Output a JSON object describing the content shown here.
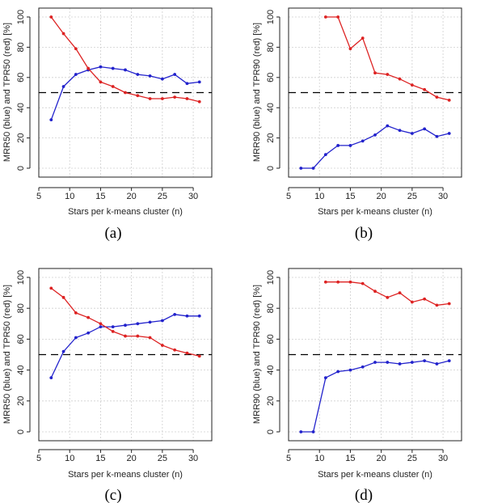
{
  "chart_data": [
    {
      "type": "line",
      "caption": "(a)",
      "xlabel": "Stars per k-means cluster (n)",
      "ylabel": "MRR50 (blue) and TPR50 (red) [%]",
      "xlim": [
        5,
        33
      ],
      "ylim": [
        0,
        100
      ],
      "xticks": [
        5,
        10,
        15,
        20,
        25,
        30
      ],
      "yticks": [
        0,
        20,
        40,
        60,
        80,
        100
      ],
      "reference_line": 50,
      "series": [
        {
          "name": "MRR50 (blue)",
          "color": "#2222cc",
          "x": [
            7,
            9,
            11,
            13,
            15,
            17,
            19,
            21,
            23,
            25,
            27,
            29,
            31
          ],
          "y": [
            32,
            54,
            62,
            65,
            67,
            66,
            65,
            62,
            61,
            59,
            62,
            56,
            57
          ]
        },
        {
          "name": "TPR50 (red)",
          "color": "#dd2222",
          "x": [
            7,
            9,
            11,
            13,
            15,
            17,
            19,
            21,
            23,
            25,
            27,
            29,
            31
          ],
          "y": [
            100,
            89,
            79,
            66,
            57,
            54,
            50,
            48,
            46,
            46,
            47,
            46,
            44
          ]
        }
      ]
    },
    {
      "type": "line",
      "caption": "(b)",
      "xlabel": "Stars per k-means cluster (n)",
      "ylabel": "MRR90 (blue) and TPR90 (red) [%]",
      "xlim": [
        5,
        33
      ],
      "ylim": [
        0,
        100
      ],
      "xticks": [
        5,
        10,
        15,
        20,
        25,
        30
      ],
      "yticks": [
        0,
        20,
        40,
        60,
        80,
        100
      ],
      "reference_line": 50,
      "series": [
        {
          "name": "MRR90 (blue)",
          "color": "#2222cc",
          "x": [
            7,
            9,
            11,
            13,
            15,
            17,
            19,
            21,
            23,
            25,
            27,
            29,
            31
          ],
          "y": [
            0,
            0,
            9,
            15,
            15,
            18,
            22,
            28,
            25,
            23,
            26,
            21,
            23
          ]
        },
        {
          "name": "TPR90 (red)",
          "color": "#dd2222",
          "x": [
            11,
            13,
            15,
            17,
            19,
            21,
            23,
            25,
            27,
            29,
            31
          ],
          "y": [
            100,
            100,
            79,
            86,
            63,
            62,
            59,
            55,
            52,
            47,
            45
          ]
        }
      ]
    },
    {
      "type": "line",
      "caption": "(c)",
      "xlabel": "Stars per k-means cluster (n)",
      "ylabel": "MRR50 (blue) and TPR50 (red) [%]",
      "xlim": [
        5,
        33
      ],
      "ylim": [
        0,
        100
      ],
      "xticks": [
        5,
        10,
        15,
        20,
        25,
        30
      ],
      "yticks": [
        0,
        20,
        40,
        60,
        80,
        100
      ],
      "reference_line": 50,
      "series": [
        {
          "name": "MRR50 (blue)",
          "color": "#2222cc",
          "x": [
            7,
            9,
            11,
            13,
            15,
            17,
            19,
            21,
            23,
            25,
            27,
            29,
            31
          ],
          "y": [
            35,
            52,
            61,
            64,
            68,
            68,
            69,
            70,
            71,
            72,
            76,
            75,
            75
          ]
        },
        {
          "name": "TPR50 (red)",
          "color": "#dd2222",
          "x": [
            7,
            9,
            11,
            13,
            15,
            17,
            19,
            21,
            23,
            25,
            27,
            29,
            31
          ],
          "y": [
            93,
            87,
            77,
            74,
            70,
            65,
            62,
            62,
            61,
            56,
            53,
            51,
            49
          ]
        }
      ]
    },
    {
      "type": "line",
      "caption": "(d)",
      "xlabel": "Stars per k-means cluster (n)",
      "ylabel": "MRR90 (blue) and TPR90 (red) [%]",
      "xlim": [
        5,
        33
      ],
      "ylim": [
        0,
        100
      ],
      "xticks": [
        5,
        10,
        15,
        20,
        25,
        30
      ],
      "yticks": [
        0,
        20,
        40,
        60,
        80,
        100
      ],
      "reference_line": 50,
      "series": [
        {
          "name": "MRR90 (blue)",
          "color": "#2222cc",
          "x": [
            7,
            9,
            11,
            13,
            15,
            17,
            19,
            21,
            23,
            25,
            27,
            29,
            31
          ],
          "y": [
            0,
            0,
            35,
            39,
            40,
            42,
            45,
            45,
            44,
            45,
            46,
            44,
            46
          ]
        },
        {
          "name": "TPR90 (red)",
          "color": "#dd2222",
          "x": [
            11,
            13,
            15,
            17,
            19,
            21,
            23,
            25,
            27,
            29,
            31
          ],
          "y": [
            97,
            97,
            97,
            96,
            91,
            87,
            90,
            84,
            86,
            82,
            83
          ]
        }
      ]
    }
  ]
}
